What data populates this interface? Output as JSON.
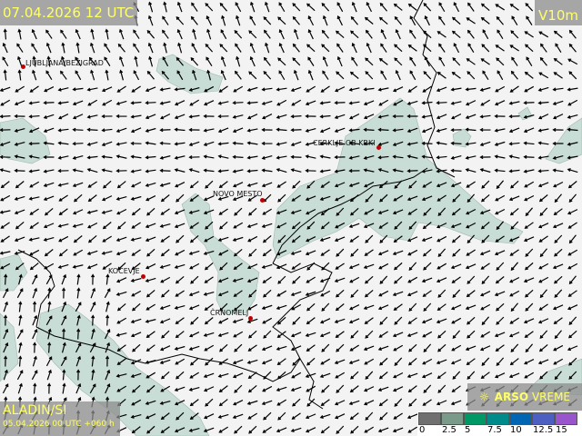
{
  "header": {
    "valid_time": "07.04.2026 12 UTC",
    "variable": "V10m"
  },
  "footer": {
    "model": "ALADIN/SI",
    "run": "05.04.2026 00 UTC +060 h"
  },
  "logo": {
    "brand_bold": "ARSO",
    "brand_light": "VREME",
    "icon": "sun-icon"
  },
  "cities": [
    {
      "name": "LJUBLJANA/BEŽIGRAD"
    },
    {
      "name": "CERKLJE OB KRKI"
    },
    {
      "name": "NOVO MESTO"
    },
    {
      "name": "KOČEVJE"
    },
    {
      "name": "ČRNOMELJ"
    }
  ],
  "legend": {
    "unit_labels": [
      "0",
      "2.5",
      "5",
      "7.5",
      "10",
      "12.5",
      "15"
    ],
    "colors": [
      "#707070",
      "#7a9a8a",
      "#009966",
      "#008b8b",
      "#0066b3",
      "#4d5fc0",
      "#9955cc"
    ]
  },
  "colors": {
    "shade": "#c8ddd5",
    "arrow": "#000000",
    "border": "#000000",
    "label_text": "#ffff66"
  }
}
